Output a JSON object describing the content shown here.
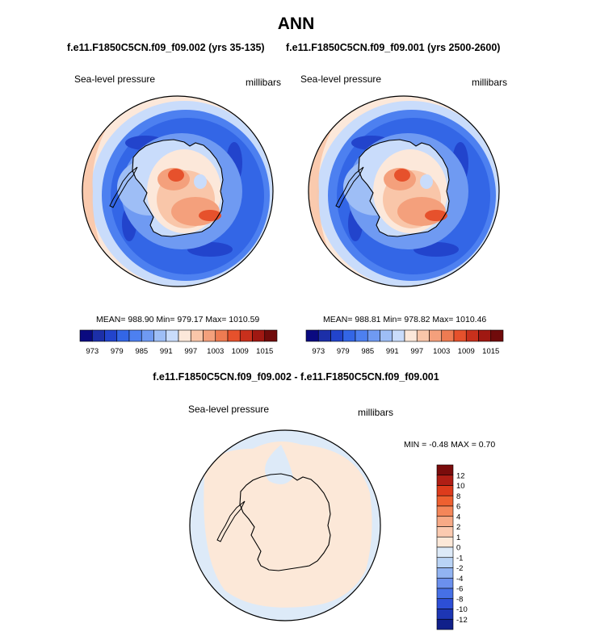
{
  "page": {
    "title": "ANN",
    "case1": "f.e11.F1850C5CN.f09_f09.002 (yrs 35-135)",
    "case2": "f.e11.F1850C5CN.f09_f09.001 (yrs 2500-2600)",
    "diff_title": "f.e11.F1850C5CN.f09_f09.002 - f.e11.F1850C5CN.f09_f09.001"
  },
  "panels": [
    {
      "variable": "Sea-level pressure",
      "units": "millibars",
      "stats": "MEAN= 988.90  Min= 979.17  Max= 1010.59"
    },
    {
      "variable": "Sea-level pressure",
      "units": "millibars",
      "stats": "MEAN= 988.81  Min= 978.82  Max= 1010.46"
    }
  ],
  "diff_panel": {
    "variable": "Sea-level pressure",
    "units": "millibars",
    "minmax": "MIN =  -0.48 MAX =   0.70"
  },
  "colors": {
    "abs_scale": [
      "#0a0a80",
      "#1c2fa8",
      "#2244cc",
      "#3366e6",
      "#4d80f0",
      "#6f9af2",
      "#9ebef6",
      "#c9dcfb",
      "#fce8da",
      "#f9c6a9",
      "#f4a07c",
      "#ee7b52",
      "#e6512c",
      "#c8301c",
      "#a01812",
      "#700b0b"
    ],
    "diff_scale": [
      "#7a0c0c",
      "#b01e15",
      "#dd3b1c",
      "#ee6030",
      "#f48659",
      "#f7aa86",
      "#fbcab0",
      "#fce8d8",
      "#ddeaf8",
      "#b9d3f5",
      "#92b4f2",
      "#6b90ed",
      "#4670e6",
      "#2d4fd6",
      "#1d36b4",
      "#10208a"
    ]
  },
  "chart_data": [
    {
      "type": "heatmap",
      "projection": "south polar stereographic",
      "title": "Sea-level pressure",
      "units": "millibars",
      "mean": 988.9,
      "min": 979.17,
      "max": 1010.59,
      "colorbar_levels": [
        973,
        976,
        979,
        982,
        985,
        988,
        991,
        994,
        997,
        1000,
        1003,
        1006,
        1009,
        1012,
        1015
      ],
      "colorbar_tick_labels": [
        "973",
        "979",
        "985",
        "991",
        "997",
        "1003",
        "1009",
        "1015"
      ]
    },
    {
      "type": "heatmap",
      "projection": "south polar stereographic",
      "title": "Sea-level pressure",
      "units": "millibars",
      "mean": 988.81,
      "min": 978.82,
      "max": 1010.46,
      "colorbar_levels": [
        973,
        976,
        979,
        982,
        985,
        988,
        991,
        994,
        997,
        1000,
        1003,
        1006,
        1009,
        1012,
        1015
      ],
      "colorbar_tick_labels": [
        "973",
        "979",
        "985",
        "991",
        "997",
        "1003",
        "1009",
        "1015"
      ]
    },
    {
      "type": "heatmap",
      "projection": "south polar stereographic",
      "title": "Sea-level pressure",
      "units": "millibars",
      "min": -0.48,
      "max": 0.7,
      "colorbar_levels": [
        12,
        10,
        8,
        6,
        4,
        2,
        1,
        0,
        -1,
        -2,
        -4,
        -6,
        -8,
        -10,
        -12
      ],
      "colorbar_tick_labels": [
        "12",
        "10",
        "8",
        "6",
        "4",
        "2",
        "1",
        "0",
        "-1",
        "-2",
        "-4",
        "-6",
        "-8",
        "-10",
        "-12"
      ]
    }
  ]
}
